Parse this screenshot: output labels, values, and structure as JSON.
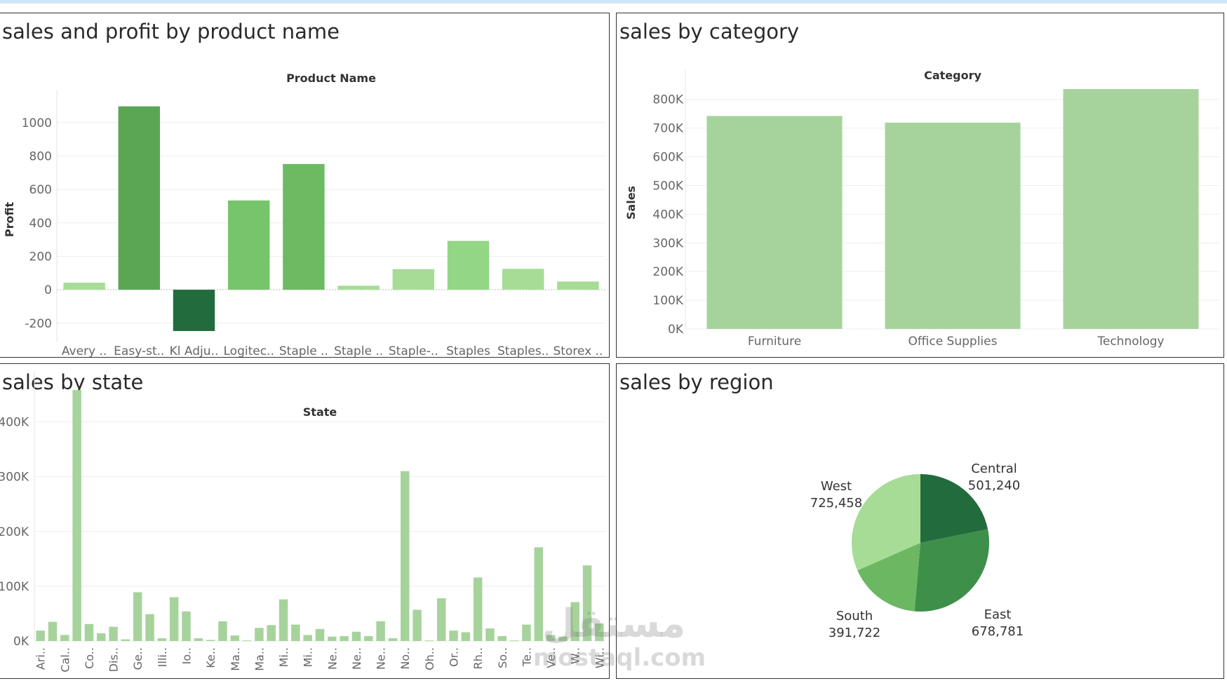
{
  "panels": {
    "product": {
      "title": "sales and profit by product name"
    },
    "category": {
      "title": "sales by category"
    },
    "state": {
      "title": "sales by state"
    },
    "region": {
      "title": "sales by region"
    }
  },
  "watermark": {
    "arabic": "مستقل",
    "latin": "mostaql.com"
  },
  "chart_data": [
    {
      "id": "product",
      "type": "bar",
      "xlabel": "Product Name",
      "ylabel": "Profit",
      "categories": [
        "Avery ..",
        "Easy-st..",
        "Kl Adju..",
        "Logitec..",
        "Staple ..",
        "Staple ..",
        "Staple-..",
        "Staples",
        "Staples..",
        "Storex .."
      ],
      "values": [
        42,
        1097,
        -247,
        534,
        752,
        24,
        123,
        292,
        125,
        49
      ],
      "yticks": [
        -200,
        0,
        200,
        400,
        600,
        800,
        1000
      ],
      "ylim": [
        -310,
        1150
      ],
      "colors": [
        "#a6dc96",
        "#5aa655",
        "#226b3d",
        "#76c56a",
        "#6cbb62",
        "#a6dc96",
        "#a6dc96",
        "#93d686",
        "#a6dc96",
        "#a6dc96"
      ],
      "grid": true
    },
    {
      "id": "category",
      "type": "bar",
      "xlabel": "Category",
      "ylabel": "Sales",
      "categories": [
        "Furniture",
        "Office Supplies",
        "Technology"
      ],
      "values": [
        742000,
        719000,
        836000
      ],
      "yticks": [
        0,
        100000,
        200000,
        300000,
        400000,
        500000,
        600000,
        700000,
        800000
      ],
      "ytick_labels": [
        "0K",
        "100K",
        "200K",
        "300K",
        "400K",
        "500K",
        "600K",
        "700K",
        "800K"
      ],
      "ylim": [
        0,
        880000
      ],
      "colors": [
        "#a6d39b"
      ],
      "grid": true
    },
    {
      "id": "state",
      "type": "bar",
      "xlabel": "State",
      "ylabel": "",
      "categories": [
        "Ari..",
        "",
        "Cal..",
        "",
        "Co..",
        "",
        "Dis..",
        "",
        "Ge..",
        "",
        "Illi..",
        "",
        "Io..",
        "",
        "Ke..",
        "",
        "Ma..",
        "",
        "Ma..",
        "",
        "Mi..",
        "",
        "Mi..",
        "",
        "Ne..",
        "",
        "Ne..",
        "",
        "Ne..",
        "",
        "No..",
        "",
        "Oh..",
        "",
        "Or..",
        "",
        "Rh..",
        "",
        "So..",
        "",
        "Te..",
        "",
        "Ve..",
        "",
        "W..",
        "",
        "Wi.."
      ],
      "values": [
        19000,
        35000,
        11000,
        458000,
        31000,
        14000,
        26000,
        3000,
        89000,
        49000,
        5000,
        80000,
        54000,
        5000,
        2000,
        36000,
        10000,
        1000,
        24000,
        29000,
        76000,
        30000,
        11000,
        22000,
        8000,
        9000,
        17000,
        9000,
        36000,
        5000,
        310000,
        57000,
        1000,
        78000,
        19000,
        16000,
        116000,
        23000,
        9000,
        1000,
        30000,
        171000,
        11000,
        8000,
        71000,
        138000,
        32000
      ],
      "yticks": [
        0,
        100000,
        200000,
        300000,
        400000
      ],
      "ytick_labels": [
        "0K",
        "100K",
        "200K",
        "300K",
        "400K"
      ],
      "ylim": [
        0,
        480000
      ],
      "colors": [
        "#a6d39b"
      ],
      "grid": true
    },
    {
      "id": "region",
      "type": "pie",
      "labels": [
        "Central",
        "East",
        "South",
        "West"
      ],
      "values": [
        501240,
        678781,
        391722,
        725458
      ],
      "value_labels": [
        "501,240",
        "678,781",
        "391,722",
        "725,458"
      ],
      "colors": [
        "#226b3d",
        "#3e8f4a",
        "#6cb762",
        "#a6dc96"
      ]
    }
  ]
}
